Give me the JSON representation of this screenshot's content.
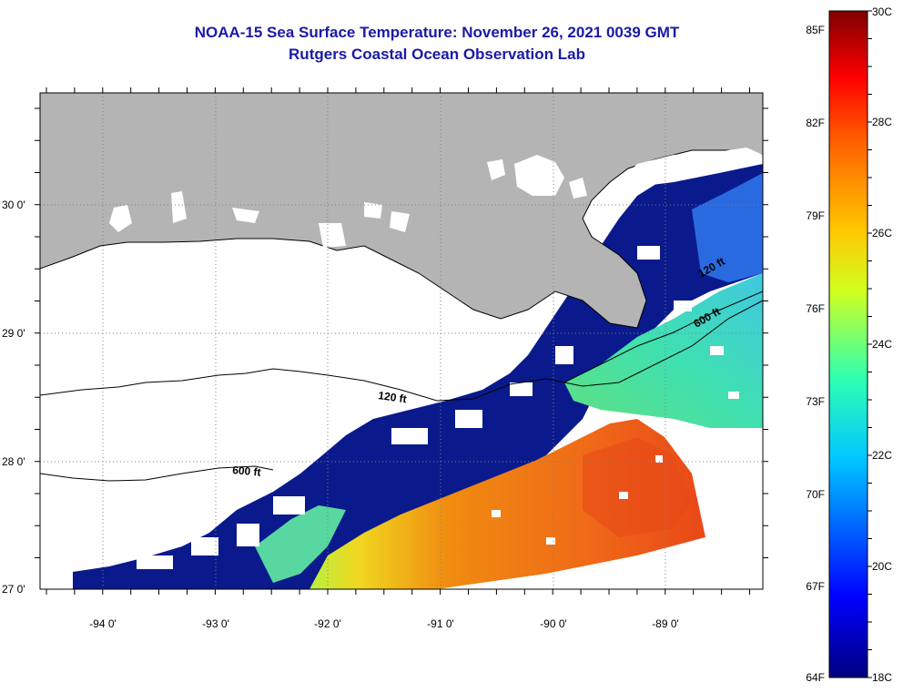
{
  "title": "NOAA-15 Sea Surface Temperature:  November 26, 2021 0039 GMT",
  "subtitle": "Rutgers Coastal Ocean Observation Lab",
  "map": {
    "lat_labels": [
      {
        "lat": 30,
        "text": "30 0'"
      },
      {
        "lat": 29,
        "text": "29 0'"
      },
      {
        "lat": 28,
        "text": "28 0'"
      },
      {
        "lat": 27,
        "text": "27 0'"
      }
    ],
    "lon_labels": [
      {
        "lon": -94,
        "text": "-94 0'"
      },
      {
        "lon": -93,
        "text": "-93 0'"
      },
      {
        "lon": -92,
        "text": "-92 0'"
      },
      {
        "lon": -91,
        "text": "-91 0'"
      },
      {
        "lon": -90,
        "text": "-90 0'"
      },
      {
        "lon": -89,
        "text": "-89 0'"
      }
    ],
    "contours": [
      {
        "text": "120 ft"
      },
      {
        "text": "600 ft"
      },
      {
        "text": "120 ft"
      },
      {
        "text": "600 ft"
      }
    ],
    "colors": {
      "land": "#b4b4b4",
      "cloud": "#ffffff",
      "cold": "#0a1a8c",
      "warm": "#f07010"
    }
  },
  "colorbar": {
    "fahrenheit": [
      "85F",
      "82F",
      "79F",
      "76F",
      "73F",
      "70F",
      "67F",
      "64F"
    ],
    "celsius": [
      "30C",
      "28C",
      "26C",
      "24C",
      "22C",
      "20C",
      "18C"
    ],
    "min_c": 18,
    "max_c": 30
  }
}
